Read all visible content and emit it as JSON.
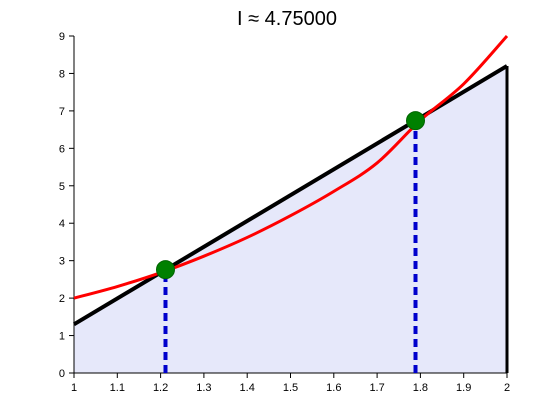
{
  "chart_data": {
    "type": "line",
    "title": "I ≈ 4.75000",
    "xlabel": "",
    "ylabel": "",
    "xlim": [
      1,
      2
    ],
    "ylim": [
      0,
      9
    ],
    "x_ticks": [
      "1",
      "1.1",
      "1.2",
      "1.3",
      "1.4",
      "1.5",
      "1.6",
      "1.7",
      "1.8",
      "1.9",
      "2"
    ],
    "y_ticks": [
      "0",
      "1",
      "2",
      "3",
      "4",
      "5",
      "6",
      "7",
      "8",
      "9"
    ],
    "grid": false,
    "legend": "none",
    "series": [
      {
        "role": "function-curve",
        "color": "#ff0000",
        "x": [
          1.0,
          1.1,
          1.2,
          1.3,
          1.4,
          1.5,
          1.6,
          1.7,
          1.8,
          1.9,
          2.0
        ],
        "y": [
          2.0,
          2.31,
          2.68,
          3.12,
          3.62,
          4.2,
          4.85,
          5.61,
          6.75,
          7.72,
          9.0
        ]
      },
      {
        "role": "interpolating-line",
        "color": "#000000",
        "x": [
          1.0,
          2.0
        ],
        "y": [
          1.3,
          8.2
        ]
      }
    ],
    "shaded_region": {
      "color": "#e6e8fa",
      "x": [
        1.0,
        2.0
      ],
      "y": [
        1.3,
        8.2
      ]
    },
    "nodes": {
      "color": "#008000",
      "x": [
        1.2113,
        1.7887
      ],
      "y": [
        2.76,
        6.74
      ]
    },
    "node_lines_color": "#0000cc"
  }
}
